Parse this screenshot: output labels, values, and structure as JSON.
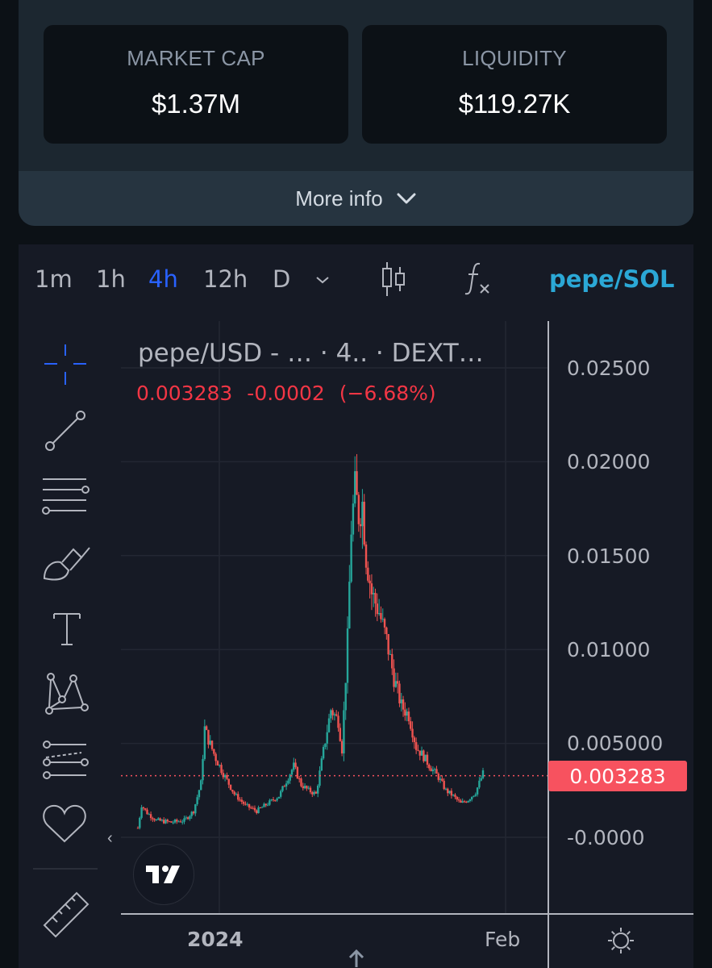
{
  "stats": [
    {
      "label": "MARKET CAP",
      "value": "$1.37M"
    },
    {
      "label": "LIQUIDITY",
      "value": "$119.27K"
    }
  ],
  "more_info": {
    "label": "More info"
  },
  "toolbar": {
    "timeframes": [
      {
        "label": "1m",
        "active": false
      },
      {
        "label": "1h",
        "active": false
      },
      {
        "label": "4h",
        "active": true
      },
      {
        "label": "12h",
        "active": false
      },
      {
        "label": "D",
        "active": false
      }
    ],
    "pair": "pepe/SOL"
  },
  "legend": {
    "title": "pepe/USD - …  · 4.. · DEXT…",
    "last": "0.003283",
    "change": "-0.0002",
    "change_pct": "(−6.68%)"
  },
  "drawing_tools": [
    "crosshair-icon",
    "trend-line-icon",
    "fib-retracement-icon",
    "brush-icon",
    "text-icon",
    "pattern-icon",
    "prediction-icon",
    "favorites-heart-icon",
    "ruler-icon"
  ],
  "colors": {
    "up": "#26a69a",
    "down": "#ef5350",
    "accent": "#2962ff",
    "price_tag": "#f7525f"
  },
  "chart_data": {
    "type": "candlestick",
    "pair": "pepe/USD",
    "interval": "4h",
    "y_ticks": [
      "0.02500",
      "0.02000",
      "0.01500",
      "0.01000",
      "0.005000",
      "-0.0000"
    ],
    "x_ticks": [
      "2024",
      "Feb"
    ],
    "ylim": [
      -0.0004,
      0.0275
    ],
    "last_price": 0.003283,
    "last_price_label": "0.003283",
    "close_trend": [
      [
        0,
        0.0005
      ],
      [
        2,
        0.0017
      ],
      [
        5,
        0.0013
      ],
      [
        10,
        0.0009
      ],
      [
        18,
        0.0008
      ],
      [
        25,
        0.0009
      ],
      [
        30,
        0.0014
      ],
      [
        34,
        0.0029
      ],
      [
        36,
        0.0058
      ],
      [
        38,
        0.0052
      ],
      [
        42,
        0.0042
      ],
      [
        46,
        0.0034
      ],
      [
        52,
        0.0023
      ],
      [
        58,
        0.0017
      ],
      [
        64,
        0.0014
      ],
      [
        70,
        0.0018
      ],
      [
        76,
        0.0022
      ],
      [
        80,
        0.003
      ],
      [
        84,
        0.0038
      ],
      [
        88,
        0.0028
      ],
      [
        92,
        0.0025
      ],
      [
        96,
        0.0023
      ],
      [
        100,
        0.0046
      ],
      [
        104,
        0.0068
      ],
      [
        108,
        0.0062
      ],
      [
        110,
        0.0047
      ],
      [
        113,
        0.0105
      ],
      [
        115,
        0.0165
      ],
      [
        117,
        0.0185
      ],
      [
        119,
        0.0172
      ],
      [
        121,
        0.0178
      ],
      [
        123,
        0.015
      ],
      [
        126,
        0.013
      ],
      [
        130,
        0.012
      ],
      [
        134,
        0.0105
      ],
      [
        138,
        0.0085
      ],
      [
        142,
        0.007
      ],
      [
        146,
        0.0065
      ],
      [
        150,
        0.0048
      ],
      [
        154,
        0.0043
      ],
      [
        158,
        0.0037
      ],
      [
        162,
        0.0032
      ],
      [
        166,
        0.0025
      ],
      [
        170,
        0.0022
      ],
      [
        174,
        0.0018
      ],
      [
        178,
        0.002
      ],
      [
        182,
        0.0024
      ],
      [
        186,
        0.0034
      ]
    ]
  }
}
